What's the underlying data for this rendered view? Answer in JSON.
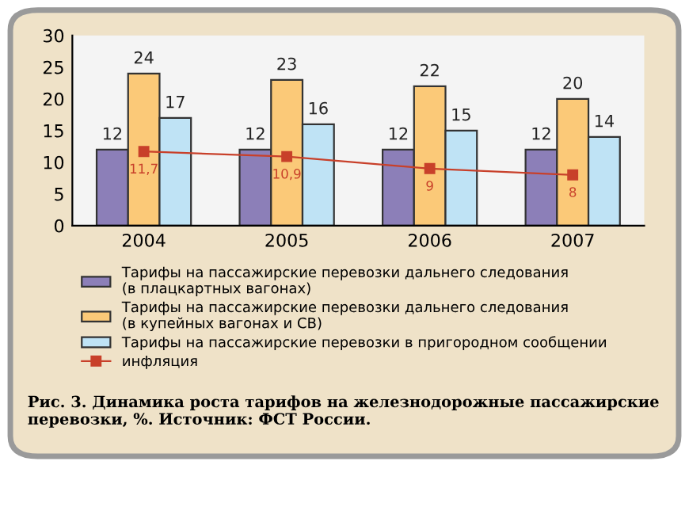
{
  "chart_data": {
    "type": "bar",
    "categories": [
      "2004",
      "2005",
      "2006",
      "2007"
    ],
    "series": [
      {
        "name": "Тарифы на пассажирские перевозки дальнего следования\n(в плацкартных вагонах)",
        "color": "#8c7fb8",
        "values": [
          12,
          12,
          12,
          12
        ]
      },
      {
        "name": "Тарифы на пассажирские перевозки дальнего следования\n(в купейных вагонах и СВ)",
        "color": "#fbc978",
        "values": [
          24,
          23,
          22,
          20
        ]
      },
      {
        "name": "Тарифы на пассажирские перевозки в пригородном сообщении",
        "color": "#bfe3f5",
        "values": [
          17,
          16,
          15,
          14
        ]
      },
      {
        "name": "инфляция",
        "type": "line",
        "color": "#c8402a",
        "values": [
          11.7,
          10.9,
          9,
          8
        ],
        "value_labels": [
          "11,7",
          "10,9",
          "9",
          "8"
        ],
        "marker": "square"
      }
    ],
    "data_labels": true,
    "ylim": [
      0,
      30
    ],
    "yticks": [
      0,
      5,
      10,
      15,
      20,
      25,
      30
    ],
    "grid": false,
    "legend": "bottom",
    "annotations": [
      "Рис. 3. Динамика роста тарифов на железнодорожные пассажирские перевозки, %. Источник: ФСТ России."
    ]
  }
}
